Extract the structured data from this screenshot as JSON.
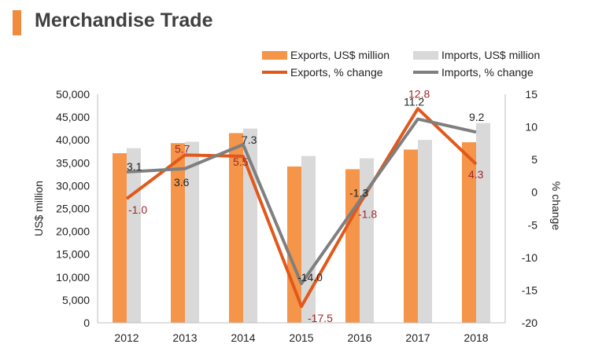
{
  "header": {
    "title": "Merchandise Trade"
  },
  "colors": {
    "accent": "#F08A3C",
    "exports_bar": "#F5954A",
    "imports_bar": "#D9D9D9",
    "exports_line": "#E2581B",
    "imports_line": "#7F7F7F",
    "export_label": "#A0282B"
  },
  "chart_data": {
    "type": "bar",
    "title": "Merchandise Trade",
    "categories": [
      "2012",
      "2013",
      "2014",
      "2015",
      "2016",
      "2017",
      "2018"
    ],
    "ylabel": "US$ million",
    "y2label": "% change",
    "ylim": [
      0,
      50000
    ],
    "y2lim": [
      -20,
      15
    ],
    "yticks": [
      "0",
      "5,000",
      "10,000",
      "15,000",
      "20,000",
      "25,000",
      "30,000",
      "35,000",
      "40,000",
      "45,000",
      "50,000"
    ],
    "y2ticks": [
      "-20",
      "-15",
      "-10",
      "-5",
      "0",
      "5",
      "10",
      "15"
    ],
    "grid": false,
    "legend_position": "top",
    "series": [
      {
        "name": "Exports, US$ million",
        "kind": "bar",
        "values": [
          37100,
          39300,
          41500,
          34200,
          33600,
          37900,
          39500
        ]
      },
      {
        "name": "Imports, US$ million",
        "kind": "bar",
        "values": [
          38200,
          39600,
          42500,
          36500,
          36000,
          40000,
          43700
        ]
      },
      {
        "name": "Exports, % change",
        "kind": "line",
        "axis": "right",
        "values": [
          -1.0,
          5.7,
          5.5,
          -17.5,
          -1.8,
          12.8,
          4.3
        ],
        "labels": [
          "-1.0",
          "5.7",
          "5.5",
          "-17.5",
          "-1.8",
          "12.8",
          "4.3"
        ]
      },
      {
        "name": "Imports, % change",
        "kind": "line",
        "axis": "right",
        "values": [
          3.1,
          3.6,
          7.3,
          -14.0,
          -1.3,
          11.2,
          9.2
        ],
        "labels": [
          "3.1",
          "3.6",
          "7.3",
          "-14.0",
          "-1.3",
          "11.2",
          "9.2"
        ]
      }
    ]
  }
}
